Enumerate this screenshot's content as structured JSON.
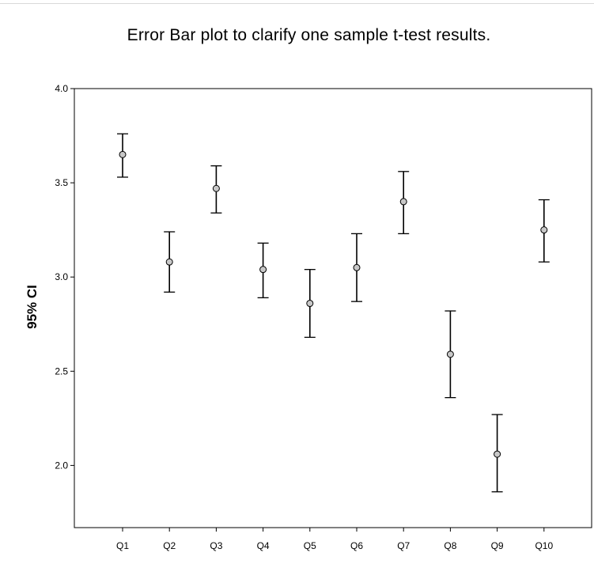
{
  "chart_data": {
    "type": "scatter",
    "title": "Error Bar plot to clarify one sample t-test results.",
    "xlabel": "",
    "ylabel": "95% CI",
    "ylim": [
      1.67,
      4.0
    ],
    "yticks": [
      "2.0",
      "2.5",
      "3.0",
      "3.5",
      "4.0"
    ],
    "ytick_values": [
      2.0,
      2.5,
      3.0,
      3.5,
      4.0
    ],
    "grid": false,
    "legend": "none",
    "categories": [
      "Q1",
      "Q2",
      "Q3",
      "Q4",
      "Q5",
      "Q6",
      "Q7",
      "Q8",
      "Q9",
      "Q10"
    ],
    "series": [
      {
        "means": [
          3.65,
          3.08,
          3.47,
          3.04,
          2.86,
          3.05,
          3.4,
          2.59,
          2.06,
          3.25
        ],
        "lower": [
          3.53,
          2.92,
          3.34,
          2.89,
          2.68,
          2.87,
          3.23,
          2.36,
          1.86,
          3.08
        ],
        "upper": [
          3.76,
          3.24,
          3.59,
          3.18,
          3.04,
          3.23,
          3.56,
          2.82,
          2.27,
          3.41
        ]
      }
    ],
    "colors": {
      "marker_fill": "#c8c8c8",
      "line": "#000000"
    }
  }
}
